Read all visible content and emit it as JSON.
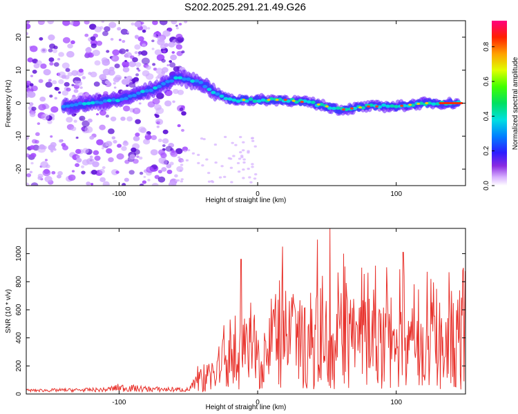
{
  "title": "S202.2025.291.21.49.G26",
  "colors": {
    "snr_line": "#e8312b",
    "scatter_low": "#a54cff",
    "scatter_mid": "#3a3aff",
    "scatter_high": "#00e0e0"
  },
  "chart_data": [
    {
      "type": "heatmap",
      "name": "spectrogram",
      "title": "",
      "xlabel": "Height of straight line (km)",
      "ylabel": "Frequency (Hz)",
      "xlim": [
        -167,
        150
      ],
      "ylim": [
        -25,
        25
      ],
      "x_ticks": [
        -100,
        0,
        100
      ],
      "y_ticks": [
        -20,
        -10,
        0,
        10,
        20
      ],
      "colorbar": {
        "label": "Normalized spectral amplitude",
        "range": [
          0.0,
          0.95
        ],
        "ticks": [
          0.0,
          0.2,
          0.4,
          0.6,
          0.8
        ],
        "colormap": "rainbow"
      },
      "ridge": [
        {
          "x": -140,
          "y": -1
        },
        {
          "x": -120,
          "y": 0
        },
        {
          "x": -100,
          "y": 1
        },
        {
          "x": -85,
          "y": 3
        },
        {
          "x": -70,
          "y": 5
        },
        {
          "x": -58,
          "y": 8
        },
        {
          "x": -50,
          "y": 7
        },
        {
          "x": -40,
          "y": 6
        },
        {
          "x": -30,
          "y": 3
        },
        {
          "x": -20,
          "y": 1
        },
        {
          "x": 0,
          "y": 1
        },
        {
          "x": 20,
          "y": 1
        },
        {
          "x": 40,
          "y": 0
        },
        {
          "x": 60,
          "y": -2
        },
        {
          "x": 80,
          "y": -1
        },
        {
          "x": 100,
          "y": -1
        },
        {
          "x": 120,
          "y": 0
        },
        {
          "x": 145,
          "y": 0
        }
      ],
      "noise_region_x": [
        -167,
        -60
      ]
    },
    {
      "type": "line",
      "name": "snr",
      "title": "",
      "xlabel": "Height of straight line (km)",
      "ylabel": "SNR (10 * v/v)",
      "xlim": [
        -167,
        150
      ],
      "ylim": [
        0,
        1180
      ],
      "x_ticks": [
        -100,
        0,
        100
      ],
      "y_ticks": [
        0,
        200,
        400,
        600,
        800,
        1000
      ],
      "envelope": [
        {
          "x": -167,
          "y": 30
        },
        {
          "x": -110,
          "y": 40
        },
        {
          "x": -100,
          "y": 70
        },
        {
          "x": -80,
          "y": 50
        },
        {
          "x": -50,
          "y": 40
        },
        {
          "x": -45,
          "y": 120
        },
        {
          "x": -35,
          "y": 250
        },
        {
          "x": -25,
          "y": 380
        },
        {
          "x": -10,
          "y": 500
        },
        {
          "x": 10,
          "y": 600
        },
        {
          "x": 30,
          "y": 650
        },
        {
          "x": 60,
          "y": 700
        },
        {
          "x": 90,
          "y": 650
        },
        {
          "x": 120,
          "y": 620
        },
        {
          "x": 150,
          "y": 650
        }
      ],
      "peaks": [
        {
          "x": -12,
          "y": 960
        },
        {
          "x": 18,
          "y": 1050
        },
        {
          "x": 43,
          "y": 1100
        },
        {
          "x": 52,
          "y": 1180
        },
        {
          "x": 62,
          "y": 1000
        },
        {
          "x": 75,
          "y": 900
        },
        {
          "x": 105,
          "y": 1010
        },
        {
          "x": 125,
          "y": 820
        },
        {
          "x": 148,
          "y": 880
        }
      ]
    }
  ]
}
